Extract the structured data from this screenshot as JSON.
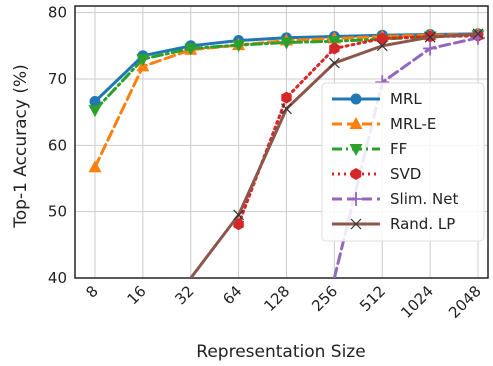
{
  "chart_data": {
    "type": "line",
    "title": "",
    "xlabel": "Representation Size",
    "ylabel": "Top-1 Accuracy (%)",
    "x": [
      8,
      16,
      32,
      64,
      128,
      256,
      512,
      1024,
      2048
    ],
    "x_tick_labels": [
      "8",
      "16",
      "32",
      "64",
      "128",
      "256",
      "512",
      "1024",
      "2048"
    ],
    "x_scale": "log2",
    "ylim": [
      40,
      81
    ],
    "y_ticks": [
      40,
      50,
      60,
      70,
      80
    ],
    "grid": true,
    "legend_position": "right",
    "series": [
      {
        "name": "MRL",
        "color": "#1f77b4",
        "style": "solid",
        "marker": "circle",
        "values": [
          66.6,
          73.5,
          75.0,
          75.8,
          76.2,
          76.4,
          76.6,
          76.7,
          76.8
        ]
      },
      {
        "name": "MRL-E",
        "color": "#ff7f0e",
        "style": "dashed",
        "marker": "triangle-up",
        "values": [
          56.7,
          71.9,
          74.4,
          75.1,
          75.8,
          76.1,
          76.4,
          76.6,
          76.7
        ]
      },
      {
        "name": "FF",
        "color": "#2ca02c",
        "style": "dashdot",
        "marker": "triangle-down",
        "values": [
          65.3,
          73.0,
          74.6,
          75.1,
          75.5,
          75.7,
          76.0,
          76.4,
          76.6
        ]
      },
      {
        "name": "SVD",
        "color": "#d62728",
        "style": "dotted",
        "marker": "hexagon",
        "values": [
          null,
          null,
          null,
          48.1,
          67.2,
          74.6,
          76.1,
          76.4,
          76.5
        ]
      },
      {
        "name": "Slim. Net",
        "color": "#9467bd",
        "style": "dashed",
        "marker": "plus",
        "values": [
          null,
          null,
          null,
          null,
          null,
          40.0,
          69.5,
          74.6,
          76.2
        ]
      },
      {
        "name": "Rand. LP",
        "color": "#8c564b",
        "style": "solid",
        "marker": "x",
        "values": [
          null,
          null,
          40.0,
          49.5,
          65.5,
          72.4,
          75.0,
          76.3,
          76.8
        ]
      }
    ]
  }
}
